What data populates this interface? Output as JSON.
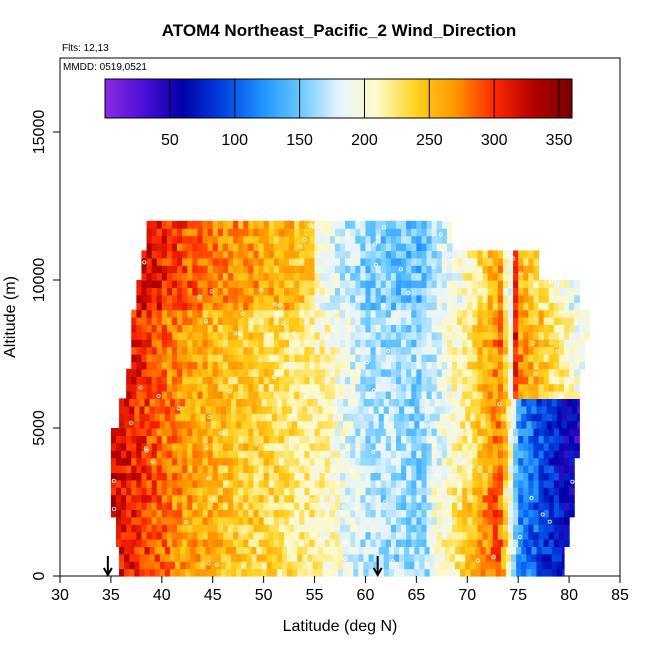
{
  "chart_data": {
    "type": "heatmap",
    "title": "ATOM4 Northeast_Pacific_2 Wind_Direction",
    "subtitle_lines": [
      "Flts: 12,13",
      "MMDD: 0519,0521"
    ],
    "xlabel": "Latitude (deg N)",
    "ylabel": "Altitude (m)",
    "xlim": [
      30,
      85
    ],
    "ylim": [
      0,
      17500
    ],
    "xticks": [
      "30",
      "35",
      "40",
      "45",
      "50",
      "55",
      "60",
      "65",
      "70",
      "75",
      "80",
      "85"
    ],
    "yticks": [
      "0",
      "5000",
      "10000",
      "15000"
    ],
    "colorbar": {
      "range": [
        0,
        360
      ],
      "ticks": [
        "50",
        "100",
        "150",
        "200",
        "250",
        "300",
        "350"
      ],
      "colors": [
        "#8a2be2",
        "#4b0fd6",
        "#0000a8",
        "#0040e0",
        "#1e90ff",
        "#64c8ff",
        "#e6f4ff",
        "#fffac8",
        "#ffd21e",
        "#ff9600",
        "#ff2800",
        "#b40000",
        "#780000"
      ]
    },
    "arrow_markers": [
      {
        "latitude": 34.7
      },
      {
        "latitude": 61.2
      }
    ],
    "altitude_levels": [
      500,
      1500,
      2500,
      3500,
      4500,
      5500,
      6500,
      7500,
      8500,
      9500,
      10500,
      11500
    ],
    "latitude_extent_by_level": [
      [
        35.8,
        79.5
      ],
      [
        35.5,
        80.0
      ],
      [
        35.0,
        80.5
      ],
      [
        35.0,
        80.5
      ],
      [
        35.0,
        81.0
      ],
      [
        35.8,
        81.0
      ],
      [
        36.5,
        81.0
      ],
      [
        37.0,
        81.5
      ],
      [
        37.0,
        82.0
      ],
      [
        37.5,
        81.0
      ],
      [
        38.0,
        77.0
      ],
      [
        38.5,
        68.5
      ]
    ],
    "wind_direction_profile": {
      "latitudes": [
        35,
        38,
        40,
        42,
        45,
        50,
        55,
        60,
        65,
        70,
        73,
        75,
        78,
        81
      ],
      "values_deg": [
        320,
        300,
        280,
        265,
        250,
        235,
        215,
        170,
        160,
        225,
        280,
        120,
        80,
        40
      ]
    }
  }
}
